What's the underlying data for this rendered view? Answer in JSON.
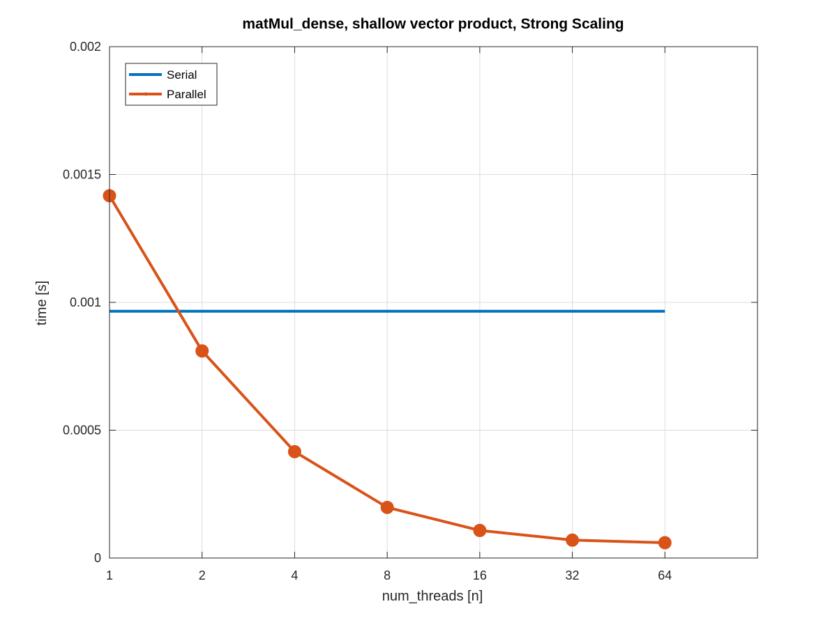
{
  "chart_data": {
    "type": "line",
    "title": "matMul_dense, shallow vector product, Strong Scaling",
    "xlabel": "num_threads [n]",
    "ylabel": "time [s]",
    "x_scale": "log2",
    "x": [
      1,
      2,
      4,
      8,
      16,
      32,
      64
    ],
    "x_tick_labels": [
      "1",
      "2",
      "4",
      "8",
      "16",
      "32",
      "64"
    ],
    "xlim": [
      1,
      128
    ],
    "ylim": [
      0,
      0.002
    ],
    "y_ticks": [
      0,
      0.0005,
      0.001,
      0.0015,
      0.002
    ],
    "y_tick_labels": [
      "0",
      "0.0005",
      "0.001",
      "0.0015",
      "0.002"
    ],
    "grid": true,
    "legend_position": "top-left",
    "series": [
      {
        "name": "Serial",
        "color": "#0072BD",
        "marker": "none",
        "values": [
          0.000965,
          0.000965,
          0.000965,
          0.000965,
          0.000965,
          0.000965,
          0.000965
        ]
      },
      {
        "name": "Parallel",
        "color": "#D95319",
        "marker": "circle",
        "values": [
          0.001417,
          0.00081,
          0.000416,
          0.000198,
          0.000108,
          7e-05,
          6e-05
        ]
      }
    ]
  }
}
